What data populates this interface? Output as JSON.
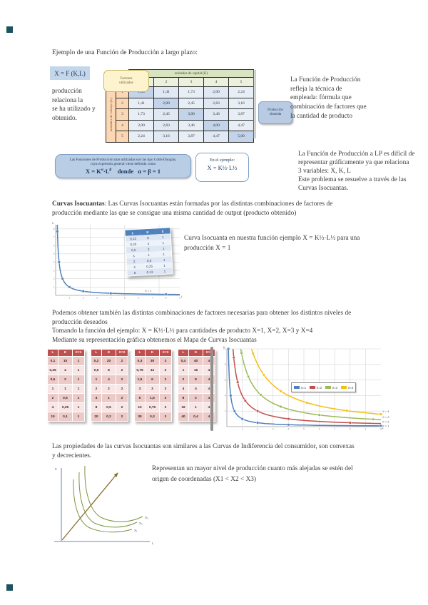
{
  "page": {
    "heading": "Ejemplo de una Función de Producción a largo plazo:",
    "formula_chip": "X = F (K,L)",
    "left_note_lines": [
      "producción",
      "relaciona la",
      "se ha utilizado y",
      "obtenido."
    ],
    "right_note_lines": [
      "La Función de Producción",
      "refleja la técnica de",
      "empleada: fórmula que",
      "combinación de factores que",
      "la cantidad de producto"
    ]
  },
  "prod_table": {
    "corner_label_1": "Factores",
    "corner_label_2": "utilizados",
    "col_header": "unidades de capital (K)",
    "row_header": "unidades de trabajo (L)",
    "col_labels": [
      "1",
      "2",
      "3",
      "4",
      "5"
    ],
    "row_labels": [
      "1",
      "2",
      "3",
      "4",
      "5"
    ],
    "cells": [
      [
        "1,00",
        "1,41",
        "1,73",
        "2,00",
        "2,24"
      ],
      [
        "1,41",
        "2,00",
        "2,45",
        "2,83",
        "3,16"
      ],
      [
        "1,73",
        "2,45",
        "3,00",
        "3,46",
        "3,87"
      ],
      [
        "2,00",
        "2,83",
        "3,46",
        "4,00",
        "4,47"
      ],
      [
        "2,24",
        "3,16",
        "3,87",
        "4,47",
        "5,00"
      ]
    ],
    "output_chip_1": "Producción",
    "output_chip_2": "obtenida"
  },
  "cobb_box": {
    "line1": "Las Funciones de Producción más utilizadas son las tipo Cobb-Douglas,",
    "line2": "cuya expresión general viene definida como",
    "f_p1": "X = K",
    "f_sup1": "α",
    "f_p2": "·L",
    "f_sup2": "β",
    "f_rest": "    donde   α = β = 1"
  },
  "example_chip": {
    "line1": "En el ejemplo:",
    "formula": "X = K½·L½"
  },
  "lp_note_lines": [
    "La Función de Producción a LP es difícil de",
    "representar gráficamente ya que relaciona",
    "3 variables: X, K, L",
    "Este problema se resuelve a través de las",
    "Curvas Isocuantas."
  ],
  "isoquant_intro": {
    "bold": "Curvas Isocuantas",
    "line1_rest": ": Las Curvas Isocuantas están formadas por las distintas combinaciones de factores de",
    "line2": "producción mediante las que se consigue una misma cantidad de output (producto obtenido)"
  },
  "iso_caption_lines": [
    "Curva Isocuanta en nuestra función ejemplo X = K½·L½ para una",
    "producción X = 1"
  ],
  "iso_table": {
    "headers": [
      "L",
      "K",
      "X"
    ],
    "rows": [
      [
        "0,13",
        "8",
        "1"
      ],
      [
        "0,25",
        "4",
        "1"
      ],
      [
        "0,5",
        "2",
        "1"
      ],
      [
        "1",
        "1",
        "1"
      ],
      [
        "2",
        "0,5",
        "1"
      ],
      [
        "4",
        "0,25",
        "1"
      ],
      [
        "8",
        "0,13",
        "1"
      ]
    ]
  },
  "map_intro_lines": [
    "Podemos obtener también las distintas combinaciones de factores necesarias para obtener los distintos niveles de",
    "producción deseados",
    "Tomando la función del ejemplo: X = K½·L½ para cantidades de producto X=1, X=2, X=3 y X=4",
    "Mediante su representación gráfica obtenemos el Mapa de Curvas Isocuantas"
  ],
  "map_tables": [
    {
      "headers": [
        "L",
        "K",
        "X=1"
      ],
      "rows": [
        [
          "0,1",
          "10",
          "1"
        ],
        [
          "0,25",
          "4",
          "1"
        ],
        [
          "0,5",
          "2",
          "1"
        ],
        [
          "1",
          "1",
          "1"
        ],
        [
          "2",
          "0,5",
          "1"
        ],
        [
          "4",
          "0,25",
          "1"
        ],
        [
          "10",
          "0,1",
          "1"
        ]
      ]
    },
    {
      "headers": [
        "L",
        "K",
        "X=2"
      ],
      "rows": [
        [
          "0,2",
          "20",
          "2"
        ],
        [
          "0,5",
          "8",
          "2"
        ],
        [
          "1",
          "4",
          "2"
        ],
        [
          "2",
          "2",
          "2"
        ],
        [
          "4",
          "1",
          "2"
        ],
        [
          "8",
          "0,5",
          "2"
        ],
        [
          "20",
          "0,2",
          "2"
        ]
      ]
    },
    {
      "headers": [
        "L",
        "K",
        "X=3"
      ],
      "rows": [
        [
          "0,3",
          "30",
          "3"
        ],
        [
          "0,75",
          "12",
          "3"
        ],
        [
          "1,5",
          "6",
          "3"
        ],
        [
          "3",
          "3",
          "3"
        ],
        [
          "6",
          "1,5",
          "3"
        ],
        [
          "12",
          "0,75",
          "3"
        ],
        [
          "30",
          "0,3",
          "3"
        ]
      ]
    },
    {
      "headers": [
        "L",
        "K",
        "X=4"
      ],
      "rows": [
        [
          "0,4",
          "40",
          "4"
        ],
        [
          "1",
          "16",
          "4"
        ],
        [
          "2",
          "8",
          "4"
        ],
        [
          "4",
          "4",
          "4"
        ],
        [
          "8",
          "2",
          "4"
        ],
        [
          "16",
          "1",
          "4"
        ],
        [
          "40",
          "0,4",
          "4"
        ]
      ]
    }
  ],
  "properties_lines": [
    "Las propiedades de las curvas Isocuantas son similares a las Curvas de Indiferencia del consumidor, son convexas",
    "y decrecientes."
  ],
  "bottom_caption_lines": [
    "Representan un mayor nivel de producción cuanto más alejadas se estén del",
    "origen de coordenadas (X1 < X2 < X3)"
  ],
  "bottom_figure": {
    "y_axis": "K",
    "x_axis": "L",
    "curve_labels": [
      "X₁",
      "X₂",
      "X₃"
    ]
  },
  "chart_data": [
    {
      "type": "line",
      "xlabel": "L",
      "ylabel": "K",
      "xlim": [
        0,
        9
      ],
      "ylim": [
        0,
        8.5
      ],
      "xticks": [
        1,
        2,
        3,
        4,
        5,
        6,
        7,
        8,
        9
      ],
      "yticks": [
        1,
        2,
        3,
        4,
        5,
        6,
        7,
        8
      ],
      "grid_x": [
        2.5,
        5,
        7.5
      ],
      "grid_y": [
        1,
        2,
        3,
        4,
        5,
        6,
        7,
        8
      ],
      "inner_label": "X = 1",
      "series": [
        {
          "name": "X = 1",
          "color": "#4f81bd",
          "kl_constant": 1,
          "marker_x": [
            0.13,
            0.25,
            0.5,
            1,
            2,
            4,
            8
          ]
        }
      ]
    },
    {
      "type": "line",
      "xlabel": "L",
      "ylabel": "K",
      "xlim": [
        0,
        10
      ],
      "ylim": [
        0,
        10
      ],
      "xticks": [
        1,
        2,
        3,
        4,
        5,
        6,
        7,
        8,
        9,
        10
      ],
      "yticks": [
        2,
        4,
        6,
        8,
        10
      ],
      "grid_x": [
        1,
        2,
        3,
        4,
        5,
        6,
        7,
        8,
        9
      ],
      "grid_y": [
        2,
        4,
        6,
        8,
        10
      ],
      "right_labels": [
        "X = 4",
        "X = 3",
        "X = 2",
        "X = 1"
      ],
      "series": [
        {
          "name": "X=1",
          "color": "#4f81bd",
          "kl_constant": 1,
          "marker_x": [
            0.1,
            0.25,
            0.5,
            1,
            2,
            4,
            10
          ]
        },
        {
          "name": "X=2",
          "color": "#c0504d",
          "kl_constant": 4,
          "marker_x": [
            0.45,
            0.7,
            1.2,
            2,
            4,
            8
          ]
        },
        {
          "name": "X=3",
          "color": "#9bbb59",
          "kl_constant": 9,
          "marker_x": [
            0.95,
            1.4,
            2.2,
            3.5,
            6,
            9.5
          ]
        },
        {
          "name": "X=4",
          "color": "#f2c012",
          "kl_constant": 16,
          "marker_x": [
            1.7,
            2.4,
            3.5,
            5.2,
            7.8,
            10
          ]
        }
      ]
    }
  ]
}
